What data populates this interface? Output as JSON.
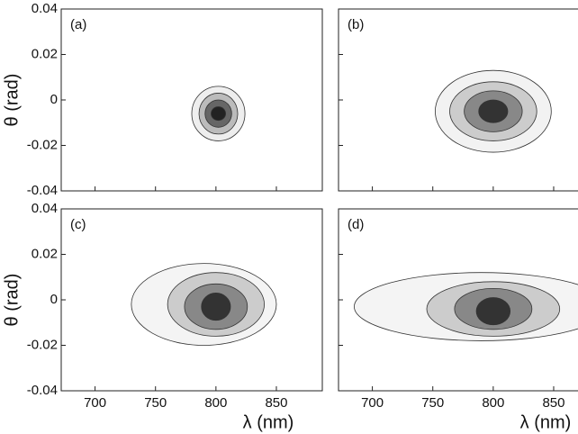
{
  "chart_data": [
    {
      "type": "contour",
      "panel_label": "(a)",
      "ylabel": "θ (rad)",
      "xlim": [
        672,
        888
      ],
      "ylim": [
        -0.04,
        0.04
      ],
      "xticks": [
        700,
        750,
        800,
        850
      ],
      "yticks": [
        -0.04,
        -0.02,
        0,
        0.02,
        0.04
      ]
    },
    {
      "type": "contour",
      "panel_label": "(b)",
      "xlim": [
        672,
        888
      ],
      "ylim": [
        -0.04,
        0.04
      ],
      "xticks": [
        700,
        750,
        800,
        850
      ],
      "yticks": [
        -0.04,
        -0.02,
        0,
        0.02,
        0.04
      ]
    },
    {
      "type": "contour",
      "panel_label": "(c)",
      "ylabel": "θ (rad)",
      "xlabel": "λ (nm)",
      "xlim": [
        672,
        888
      ],
      "ylim": [
        -0.04,
        0.04
      ],
      "xticks": [
        700,
        750,
        800,
        850
      ],
      "yticks": [
        -0.04,
        -0.02,
        0,
        0.02,
        0.04
      ]
    },
    {
      "type": "contour",
      "panel_label": "(d)",
      "xlabel": "λ (nm)",
      "xlim": [
        672,
        888
      ],
      "ylim": [
        -0.04,
        0.04
      ],
      "xticks": [
        700,
        750,
        800,
        850
      ],
      "yticks": [
        -0.04,
        -0.02,
        0,
        0.02,
        0.04
      ]
    }
  ]
}
